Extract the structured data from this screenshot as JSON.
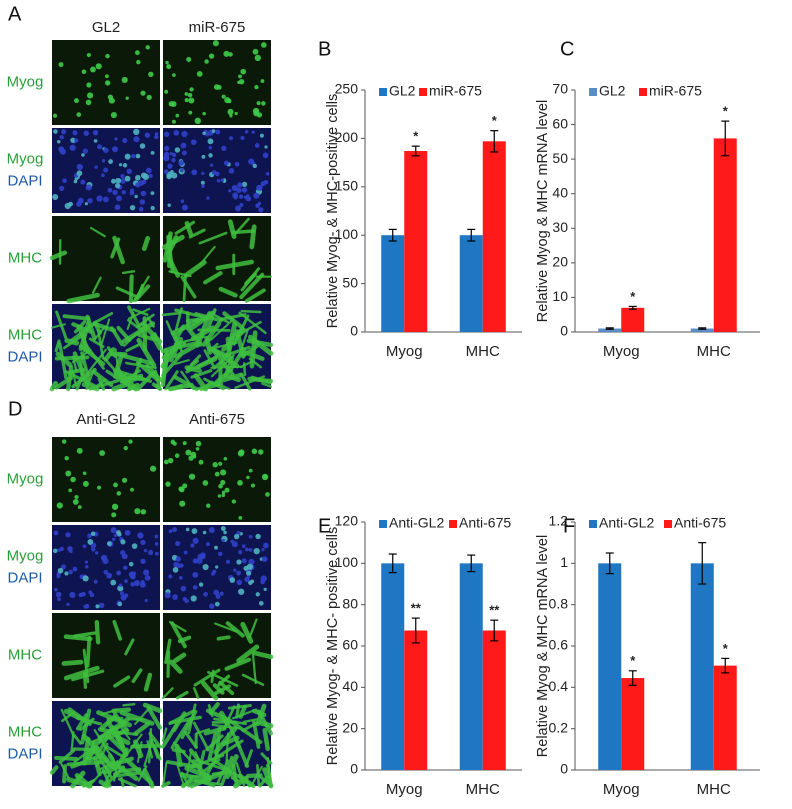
{
  "panel_letters": [
    "A",
    "B",
    "C",
    "D",
    "E",
    "F"
  ],
  "image_panels": [
    {
      "columns": [
        "GL2",
        "miR-675"
      ],
      "rows": [
        [
          "Myog"
        ],
        [
          "Myog",
          "DAPI"
        ],
        [
          "MHC"
        ],
        [
          "MHC",
          "DAPI"
        ]
      ]
    },
    {
      "columns": [
        "Anti-GL2",
        "Anti-675"
      ],
      "rows": [
        [
          "Myog"
        ],
        [
          "Myog",
          "DAPI"
        ],
        [
          "MHC"
        ],
        [
          "MHC",
          "DAPI"
        ]
      ]
    }
  ],
  "chart_data": [
    {
      "type": "bar",
      "ylabel": "Relative Myog- & MHC-positive cells",
      "categories": [
        "Myog",
        "MHC"
      ],
      "series": [
        {
          "name": "GL2",
          "color": "#1f77c4",
          "values": [
            100,
            100
          ],
          "errors": [
            6,
            6
          ]
        },
        {
          "name": "miR-675",
          "color": "#ff1a1a",
          "values": [
            187,
            197
          ],
          "errors": [
            5,
            11
          ],
          "significance": [
            "*",
            "*"
          ]
        }
      ],
      "ylim": [
        0,
        250
      ],
      "yticks": [
        0,
        50,
        100,
        150,
        200,
        250
      ]
    },
    {
      "type": "bar",
      "ylabel": "Relative Myog & MHC mRNA level",
      "categories": [
        "Myog",
        "MHC"
      ],
      "series": [
        {
          "name": "GL2",
          "color": "#5b8cc8",
          "values": [
            1,
            1
          ],
          "errors": [
            0.2,
            0.2
          ]
        },
        {
          "name": "miR-675",
          "color": "#ff1a1a",
          "values": [
            7,
            56
          ],
          "errors": [
            0.4,
            5
          ],
          "significance": [
            "*",
            "*"
          ]
        }
      ],
      "ylim": [
        0,
        70
      ],
      "yticks": [
        0,
        10,
        20,
        30,
        40,
        50,
        60,
        70
      ]
    },
    {
      "type": "bar",
      "ylabel": "Relative Myog- & MHC- positive cells",
      "categories": [
        "Myog",
        "MHC"
      ],
      "series": [
        {
          "name": "Anti-GL2",
          "color": "#1f77c4",
          "values": [
            100,
            100
          ],
          "errors": [
            4.5,
            4
          ]
        },
        {
          "name": "Anti-675",
          "color": "#ff1a1a",
          "values": [
            67.5,
            67.5
          ],
          "errors": [
            6,
            5
          ],
          "significance": [
            "**",
            "**"
          ]
        }
      ],
      "ylim": [
        0,
        120
      ],
      "yticks": [
        0,
        20,
        40,
        60,
        80,
        100,
        120
      ]
    },
    {
      "type": "bar",
      "ylabel": "Relative Myog & MHC mRNA level",
      "categories": [
        "Myog",
        "MHC"
      ],
      "series": [
        {
          "name": "Anti-GL2",
          "color": "#1f77c4",
          "values": [
            1,
            1
          ],
          "errors": [
            0.05,
            0.1
          ]
        },
        {
          "name": "Anti-675",
          "color": "#ff1a1a",
          "values": [
            0.445,
            0.505
          ],
          "errors": [
            0.035,
            0.035
          ],
          "significance": [
            "*",
            "*"
          ]
        }
      ],
      "ylim": [
        0,
        1.2
      ],
      "yticks": [
        0,
        0.2,
        0.4,
        0.6,
        0.8,
        1,
        1.2
      ]
    }
  ]
}
